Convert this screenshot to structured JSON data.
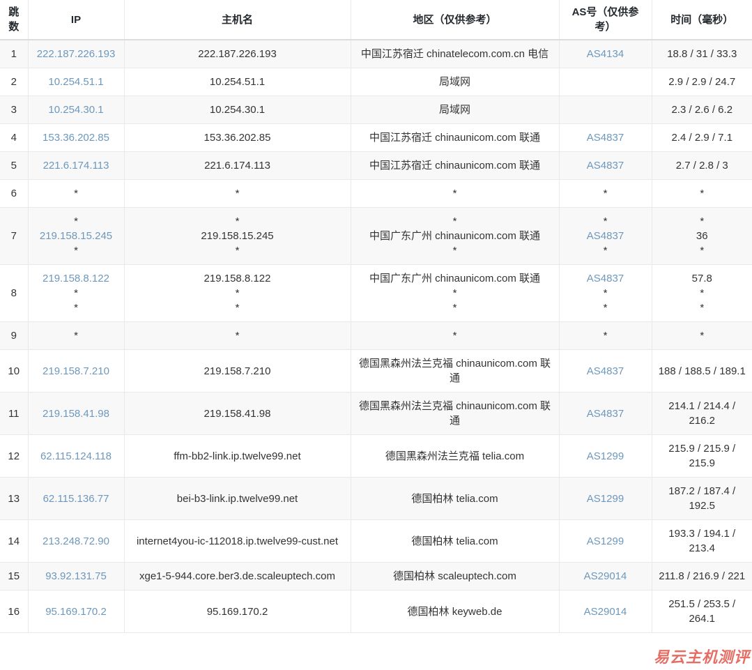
{
  "meta": {
    "link_color": "#6d98bb",
    "stripe_color": "#f8f8f9",
    "border_color": "#e7e9eb",
    "watermark_color": "#df4e42"
  },
  "watermark": {
    "text": "易云主机测评"
  },
  "table": {
    "headers": [
      "跳数",
      "IP",
      "主机名",
      "地区（仅供参考）",
      "AS号（仅供参考）",
      "时间（毫秒）"
    ],
    "rows": [
      {
        "hop": "1",
        "ip": [
          {
            "t": "222.187.226.193",
            "link": true
          }
        ],
        "host": [
          {
            "t": "222.187.226.193"
          }
        ],
        "region": [
          {
            "t": "中国江苏宿迁 chinatelecom.com.cn 电信"
          }
        ],
        "asn": [
          {
            "t": "AS4134",
            "link": true
          }
        ],
        "time": [
          {
            "t": "18.8 / 31 / 33.3"
          }
        ]
      },
      {
        "hop": "2",
        "ip": [
          {
            "t": "10.254.51.1",
            "link": true
          }
        ],
        "host": [
          {
            "t": "10.254.51.1"
          }
        ],
        "region": [
          {
            "t": "局域网"
          }
        ],
        "asn": [],
        "time": [
          {
            "t": "2.9 / 2.9 / 24.7"
          }
        ]
      },
      {
        "hop": "3",
        "ip": [
          {
            "t": "10.254.30.1",
            "link": true
          }
        ],
        "host": [
          {
            "t": "10.254.30.1"
          }
        ],
        "region": [
          {
            "t": "局域网"
          }
        ],
        "asn": [],
        "time": [
          {
            "t": "2.3 / 2.6 / 6.2"
          }
        ]
      },
      {
        "hop": "4",
        "ip": [
          {
            "t": "153.36.202.85",
            "link": true
          }
        ],
        "host": [
          {
            "t": "153.36.202.85"
          }
        ],
        "region": [
          {
            "t": "中国江苏宿迁 chinaunicom.com 联通"
          }
        ],
        "asn": [
          {
            "t": "AS4837",
            "link": true
          }
        ],
        "time": [
          {
            "t": "2.4 / 2.9 / 7.1"
          }
        ]
      },
      {
        "hop": "5",
        "ip": [
          {
            "t": "221.6.174.113",
            "link": true
          }
        ],
        "host": [
          {
            "t": "221.6.174.113"
          }
        ],
        "region": [
          {
            "t": "中国江苏宿迁 chinaunicom.com 联通"
          }
        ],
        "asn": [
          {
            "t": "AS4837",
            "link": true
          }
        ],
        "time": [
          {
            "t": "2.7 / 2.8 / 3"
          }
        ]
      },
      {
        "hop": "6",
        "ip": [
          {
            "t": "*"
          }
        ],
        "host": [
          {
            "t": "*"
          }
        ],
        "region": [
          {
            "t": "*"
          }
        ],
        "asn": [
          {
            "t": "*"
          }
        ],
        "time": [
          {
            "t": "*"
          }
        ]
      },
      {
        "hop": "7",
        "ip": [
          {
            "t": "*"
          },
          {
            "t": "219.158.15.245",
            "link": true
          },
          {
            "t": "*"
          }
        ],
        "host": [
          {
            "t": "*"
          },
          {
            "t": "219.158.15.245"
          },
          {
            "t": "*"
          }
        ],
        "region": [
          {
            "t": "*"
          },
          {
            "t": "中国广东广州 chinaunicom.com 联通"
          },
          {
            "t": "*"
          }
        ],
        "asn": [
          {
            "t": "*"
          },
          {
            "t": "AS4837",
            "link": true
          },
          {
            "t": "*"
          }
        ],
        "time": [
          {
            "t": "*"
          },
          {
            "t": "36"
          },
          {
            "t": "*"
          }
        ]
      },
      {
        "hop": "8",
        "ip": [
          {
            "t": "219.158.8.122",
            "link": true
          },
          {
            "t": "*"
          },
          {
            "t": "*"
          }
        ],
        "host": [
          {
            "t": "219.158.8.122"
          },
          {
            "t": "*"
          },
          {
            "t": "*"
          }
        ],
        "region": [
          {
            "t": "中国广东广州 chinaunicom.com 联通"
          },
          {
            "t": "*"
          },
          {
            "t": "*"
          }
        ],
        "asn": [
          {
            "t": "AS4837",
            "link": true
          },
          {
            "t": "*"
          },
          {
            "t": "*"
          }
        ],
        "time": [
          {
            "t": "57.8"
          },
          {
            "t": "*"
          },
          {
            "t": "*"
          }
        ]
      },
      {
        "hop": "9",
        "ip": [
          {
            "t": "*"
          }
        ],
        "host": [
          {
            "t": "*"
          }
        ],
        "region": [
          {
            "t": "*"
          }
        ],
        "asn": [
          {
            "t": "*"
          }
        ],
        "time": [
          {
            "t": "*"
          }
        ]
      },
      {
        "hop": "10",
        "ip": [
          {
            "t": "219.158.7.210",
            "link": true
          }
        ],
        "host": [
          {
            "t": "219.158.7.210"
          }
        ],
        "region": [
          {
            "t": "德国黑森州法兰克福 chinaunicom.com 联通"
          }
        ],
        "asn": [
          {
            "t": "AS4837",
            "link": true
          }
        ],
        "time": [
          {
            "t": "188 / 188.5 / 189.1"
          }
        ]
      },
      {
        "hop": "11",
        "ip": [
          {
            "t": "219.158.41.98",
            "link": true
          }
        ],
        "host": [
          {
            "t": "219.158.41.98"
          }
        ],
        "region": [
          {
            "t": "德国黑森州法兰克福 chinaunicom.com 联通"
          }
        ],
        "asn": [
          {
            "t": "AS4837",
            "link": true
          }
        ],
        "time": [
          {
            "t": "214.1 / 214.4 / 216.2"
          }
        ]
      },
      {
        "hop": "12",
        "ip": [
          {
            "t": "62.115.124.118",
            "link": true
          }
        ],
        "host": [
          {
            "t": "ffm-bb2-link.ip.twelve99.net"
          }
        ],
        "region": [
          {
            "t": "德国黑森州法兰克福 telia.com"
          }
        ],
        "asn": [
          {
            "t": "AS1299",
            "link": true
          }
        ],
        "time": [
          {
            "t": "215.9 / 215.9 / 215.9"
          }
        ]
      },
      {
        "hop": "13",
        "ip": [
          {
            "t": "62.115.136.77",
            "link": true
          }
        ],
        "host": [
          {
            "t": "bei-b3-link.ip.twelve99.net"
          }
        ],
        "region": [
          {
            "t": "德国柏林 telia.com"
          }
        ],
        "asn": [
          {
            "t": "AS1299",
            "link": true
          }
        ],
        "time": [
          {
            "t": "187.2 / 187.4 / 192.5"
          }
        ]
      },
      {
        "hop": "14",
        "ip": [
          {
            "t": "213.248.72.90",
            "link": true
          }
        ],
        "host": [
          {
            "t": "internet4you-ic-112018.ip.twelve99-cust.net"
          }
        ],
        "region": [
          {
            "t": "德国柏林 telia.com"
          }
        ],
        "asn": [
          {
            "t": "AS1299",
            "link": true
          }
        ],
        "time": [
          {
            "t": "193.3 / 194.1 / 213.4"
          }
        ]
      },
      {
        "hop": "15",
        "ip": [
          {
            "t": "93.92.131.75",
            "link": true
          }
        ],
        "host": [
          {
            "t": "xge1-5-944.core.ber3.de.scaleuptech.com"
          }
        ],
        "region": [
          {
            "t": "德国柏林 scaleuptech.com"
          }
        ],
        "asn": [
          {
            "t": "AS29014",
            "link": true
          }
        ],
        "time": [
          {
            "t": "211.8 / 216.9 / 221"
          }
        ]
      },
      {
        "hop": "16",
        "ip": [
          {
            "t": "95.169.170.2",
            "link": true
          }
        ],
        "host": [
          {
            "t": "95.169.170.2"
          }
        ],
        "region": [
          {
            "t": "德国柏林 keyweb.de"
          }
        ],
        "asn": [
          {
            "t": "AS29014",
            "link": true
          }
        ],
        "time": [
          {
            "t": "251.5 / 253.5 / 264.1"
          }
        ]
      }
    ]
  }
}
